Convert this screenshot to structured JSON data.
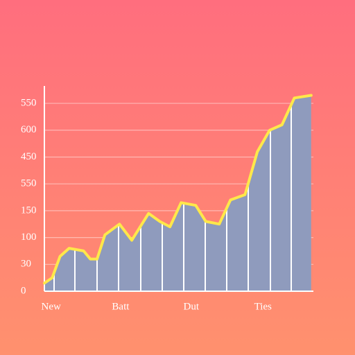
{
  "chart_data": {
    "type": "area",
    "x": [
      0,
      0.7,
      1.4,
      2.2,
      3.5,
      4.1,
      4.7,
      5.4,
      6.7,
      7.8,
      9.3,
      10.3,
      11.2,
      12.2,
      13.5,
      14.4,
      15.6,
      16.6,
      17.9,
      19,
      20.1,
      21.2,
      22.3,
      23.8
    ],
    "series": [
      {
        "color": "#ffe84a",
        "fill": "#8f9bbd",
        "values": [
          0.3,
          0.5,
          1.3,
          1.6,
          1.5,
          1.2,
          1.2,
          2.1,
          2.5,
          1.9,
          2.9,
          2.6,
          2.4,
          3.3,
          3.2,
          2.6,
          2.5,
          3.4,
          3.6,
          5.2,
          6.0,
          6.2,
          7.2,
          7.3
        ]
      }
    ],
    "xlim": [
      0,
      24
    ],
    "xticks": [
      {
        "value": 0.6,
        "label": "New"
      },
      {
        "value": 6.8,
        "label": "Batt"
      },
      {
        "value": 13.1,
        "label": "Dut"
      },
      {
        "value": 19.5,
        "label": "Ties"
      }
    ],
    "ylim": [
      0,
      7.4
    ],
    "yticks": [
      {
        "value": 0,
        "label": "0"
      },
      {
        "value": 1,
        "label": "30"
      },
      {
        "value": 2,
        "label": "100"
      },
      {
        "value": 3,
        "label": "150"
      },
      {
        "value": 4,
        "label": "550"
      },
      {
        "value": 5,
        "label": "450"
      },
      {
        "value": 6,
        "label": "600"
      },
      {
        "value": 7,
        "label": "550"
      }
    ],
    "grid": true
  }
}
